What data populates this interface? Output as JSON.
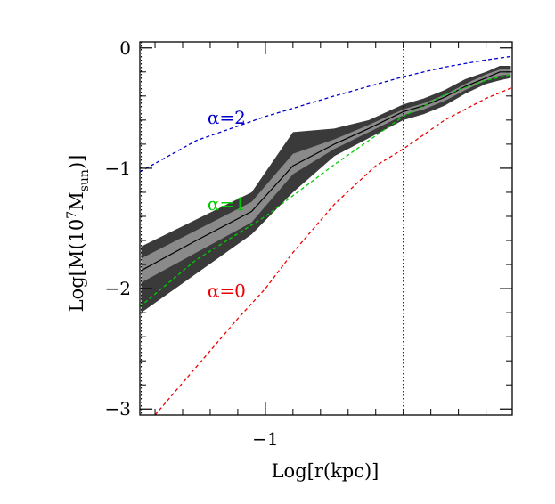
{
  "chart_data": {
    "type": "line",
    "title": "",
    "xlabel": "Log[r(kpc)]",
    "ylabel_main": "Log[M(10",
    "ylabel_sup": "7",
    "ylabel_mid": "M",
    "ylabel_sub": "sun",
    "ylabel_end": ")]",
    "xlim": [
      -1.91,
      0.79
    ],
    "ylim": [
      -3.05,
      0.05
    ],
    "x_ticks": [
      {
        "value": -1,
        "label": "−1"
      }
    ],
    "x_minor_ticks": [
      -1.8,
      -1.6,
      -1.4,
      -1.2,
      -0.8,
      -0.6,
      -0.4,
      -0.2,
      0,
      0.2,
      0.4,
      0.6
    ],
    "y_ticks": [
      {
        "value": 0,
        "label": "0"
      },
      {
        "value": -1,
        "label": "−1"
      },
      {
        "value": -2,
        "label": "−2"
      },
      {
        "value": -3,
        "label": "−3"
      }
    ],
    "y_minor_ticks": [
      -0.2,
      -0.4,
      -0.6,
      -0.8,
      -1.2,
      -1.4,
      -1.6,
      -1.8,
      -2.2,
      -2.4,
      -2.6,
      -2.8
    ],
    "vlines": [
      -1.9,
      0
    ],
    "band_outer": {
      "x": [
        -1.9,
        -1.1,
        -0.8,
        -0.5,
        -0.25,
        0,
        0.15,
        0.3,
        0.45,
        0.6,
        0.7,
        0.78
      ],
      "upper": [
        -1.65,
        -1.2,
        -0.7,
        -0.67,
        -0.6,
        -0.47,
        -0.42,
        -0.35,
        -0.26,
        -0.2,
        -0.15,
        -0.15
      ],
      "lower": [
        -2.2,
        -1.55,
        -1.2,
        -0.9,
        -0.75,
        -0.6,
        -0.55,
        -0.48,
        -0.38,
        -0.3,
        -0.27,
        -0.25
      ]
    },
    "band_inner": {
      "x": [
        -1.9,
        -1.1,
        -0.8,
        -0.5,
        -0.25,
        0,
        0.15,
        0.3,
        0.45,
        0.6,
        0.7,
        0.78
      ],
      "upper": [
        -1.75,
        -1.28,
        -0.88,
        -0.76,
        -0.64,
        -0.51,
        -0.46,
        -0.39,
        -0.3,
        -0.22,
        -0.18,
        -0.18
      ],
      "lower": [
        -1.95,
        -1.45,
        -1.05,
        -0.84,
        -0.7,
        -0.56,
        -0.51,
        -0.44,
        -0.35,
        -0.27,
        -0.23,
        -0.22
      ]
    },
    "median": {
      "x": [
        -1.9,
        -1.5,
        -1.1,
        -0.8,
        -0.5,
        -0.25,
        0,
        0.15,
        0.3,
        0.45,
        0.6,
        0.7,
        0.78
      ],
      "y": [
        -1.85,
        -1.6,
        -1.36,
        -0.98,
        -0.8,
        -0.67,
        -0.53,
        -0.48,
        -0.41,
        -0.32,
        -0.25,
        -0.2,
        -0.2
      ]
    },
    "series": [
      {
        "name": "α=2",
        "color": "#0000cc",
        "label_x": -1.42,
        "label_y": -0.63,
        "x": [
          -1.91,
          -1.5,
          -1.0,
          -0.5,
          0,
          0.3,
          0.6,
          0.79
        ],
        "y": [
          -1.03,
          -0.77,
          -0.57,
          -0.4,
          -0.24,
          -0.16,
          -0.1,
          -0.07
        ]
      },
      {
        "name": "α=1",
        "color": "#00cc00",
        "label_x": -1.42,
        "label_y": -1.35,
        "x": [
          -1.91,
          -1.5,
          -1.0,
          -0.5,
          0,
          0.3,
          0.6,
          0.79
        ],
        "y": [
          -2.15,
          -1.76,
          -1.4,
          -0.97,
          -0.57,
          -0.39,
          -0.27,
          -0.22
        ]
      },
      {
        "name": "α=0",
        "color": "#ee0000",
        "label_x": -1.42,
        "label_y": -2.07,
        "x": [
          -1.8,
          -1.5,
          -1.2,
          -1.0,
          -0.8,
          -0.5,
          -0.2,
          0,
          0.3,
          0.6,
          0.79
        ],
        "y": [
          -3.05,
          -2.65,
          -2.25,
          -2.0,
          -1.7,
          -1.3,
          -0.98,
          -0.84,
          -0.6,
          -0.42,
          -0.33
        ]
      }
    ],
    "grid": false,
    "legend": "none"
  }
}
